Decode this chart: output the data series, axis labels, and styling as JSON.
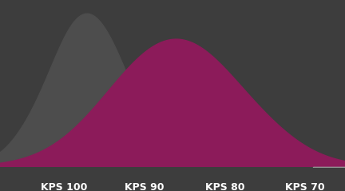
{
  "x_labels": [
    "KPS 100",
    "KPS 90",
    "KPS 80",
    "KPS 70"
  ],
  "x_positions": [
    100,
    90,
    80,
    70
  ],
  "gray_color": "#4d4d4d",
  "magenta_color": "#8c1b5a",
  "background_color": "#3d3d3d",
  "label_color": "#ffffff",
  "label_fontsize": 9,
  "gray_mean": 95,
  "gray_std": 5,
  "magenta_mean": 87,
  "magenta_std": 7,
  "xlim": [
    65,
    108
  ],
  "ylim": [
    0,
    0.085
  ]
}
